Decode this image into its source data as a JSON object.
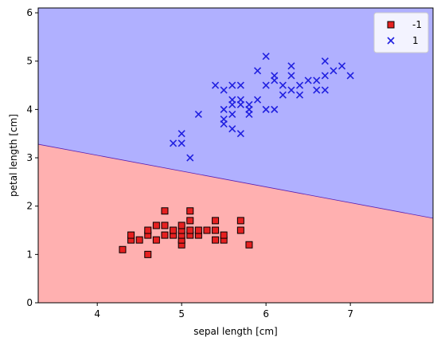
{
  "chart_data": {
    "type": "scatter",
    "title": "",
    "xlabel": "sepal length [cm]",
    "ylabel": "petal length [cm]",
    "xlim": [
      3.3,
      7.98
    ],
    "ylim": [
      0,
      6.1
    ],
    "xticks": [
      "4",
      "5",
      "6",
      "7"
    ],
    "yticks": [
      "0",
      "1",
      "2",
      "3",
      "4",
      "5",
      "6"
    ],
    "grid": false,
    "legend_position": "top-right",
    "decision_boundary": {
      "points": [
        [
          3.3,
          3.28
        ],
        [
          7.98,
          1.75
        ]
      ],
      "upper_region_label": "1",
      "lower_region_label": "-1",
      "upper_color": "#b0b0ff",
      "lower_color": "#ffb0b0"
    },
    "series": [
      {
        "name": "-1",
        "marker": "square",
        "color": "#e62020",
        "edge_color": "#000000",
        "points": [
          [
            4.3,
            1.1
          ],
          [
            4.4,
            1.3
          ],
          [
            4.4,
            1.4
          ],
          [
            4.5,
            1.3
          ],
          [
            4.6,
            1.0
          ],
          [
            4.6,
            1.4
          ],
          [
            4.6,
            1.5
          ],
          [
            4.7,
            1.3
          ],
          [
            4.7,
            1.6
          ],
          [
            4.8,
            1.4
          ],
          [
            4.8,
            1.6
          ],
          [
            4.8,
            1.9
          ],
          [
            4.9,
            1.4
          ],
          [
            4.9,
            1.5
          ],
          [
            5.0,
            1.2
          ],
          [
            5.0,
            1.3
          ],
          [
            5.0,
            1.4
          ],
          [
            5.0,
            1.5
          ],
          [
            5.0,
            1.6
          ],
          [
            5.1,
            1.4
          ],
          [
            5.1,
            1.5
          ],
          [
            5.1,
            1.7
          ],
          [
            5.1,
            1.9
          ],
          [
            5.2,
            1.4
          ],
          [
            5.2,
            1.5
          ],
          [
            5.3,
            1.5
          ],
          [
            5.4,
            1.3
          ],
          [
            5.4,
            1.5
          ],
          [
            5.4,
            1.7
          ],
          [
            5.5,
            1.3
          ],
          [
            5.5,
            1.4
          ],
          [
            5.7,
            1.5
          ],
          [
            5.7,
            1.7
          ],
          [
            5.8,
            1.2
          ]
        ]
      },
      {
        "name": "1",
        "marker": "x",
        "color": "#2020e0",
        "points": [
          [
            4.9,
            3.3
          ],
          [
            5.0,
            3.3
          ],
          [
            5.0,
            3.5
          ],
          [
            5.1,
            3.0
          ],
          [
            5.2,
            3.9
          ],
          [
            5.4,
            4.5
          ],
          [
            5.5,
            3.7
          ],
          [
            5.5,
            3.8
          ],
          [
            5.5,
            4.0
          ],
          [
            5.5,
            4.4
          ],
          [
            5.6,
            3.6
          ],
          [
            5.6,
            3.9
          ],
          [
            5.6,
            4.1
          ],
          [
            5.6,
            4.2
          ],
          [
            5.6,
            4.5
          ],
          [
            5.7,
            3.5
          ],
          [
            5.7,
            4.1
          ],
          [
            5.7,
            4.2
          ],
          [
            5.7,
            4.5
          ],
          [
            5.8,
            3.9
          ],
          [
            5.8,
            4.0
          ],
          [
            5.8,
            4.1
          ],
          [
            5.9,
            4.2
          ],
          [
            5.9,
            4.8
          ],
          [
            6.0,
            4.0
          ],
          [
            6.0,
            4.5
          ],
          [
            6.0,
            5.1
          ],
          [
            6.1,
            4.0
          ],
          [
            6.1,
            4.6
          ],
          [
            6.1,
            4.7
          ],
          [
            6.2,
            4.3
          ],
          [
            6.2,
            4.5
          ],
          [
            6.3,
            4.4
          ],
          [
            6.3,
            4.7
          ],
          [
            6.3,
            4.9
          ],
          [
            6.4,
            4.3
          ],
          [
            6.4,
            4.5
          ],
          [
            6.5,
            4.6
          ],
          [
            6.6,
            4.4
          ],
          [
            6.6,
            4.6
          ],
          [
            6.7,
            4.4
          ],
          [
            6.7,
            4.7
          ],
          [
            6.7,
            5.0
          ],
          [
            6.8,
            4.8
          ],
          [
            6.9,
            4.9
          ],
          [
            7.0,
            4.7
          ]
        ]
      }
    ]
  }
}
